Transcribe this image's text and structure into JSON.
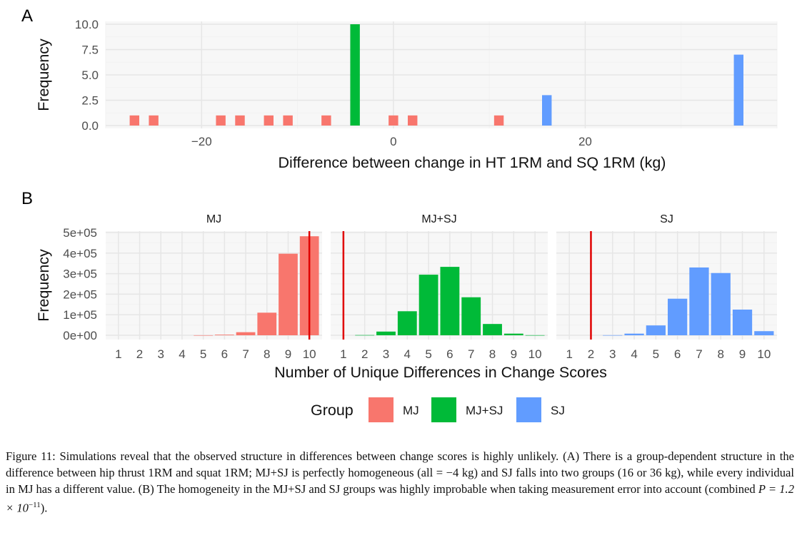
{
  "panel_a_label": "A",
  "panel_b_label": "B",
  "chart_data": [
    {
      "type": "bar",
      "panel": "A",
      "xlabel": "Difference between change in HT 1RM and SQ 1RM (kg)",
      "ylabel": "Frequency",
      "xlim": [
        -30,
        40
      ],
      "ylim": [
        0,
        10
      ],
      "xticks": [
        -20,
        0,
        20
      ],
      "xtick_labels": [
        "−20",
        "0",
        "20"
      ],
      "yticks": [
        0,
        2.5,
        5,
        7.5,
        10
      ],
      "ytick_labels": [
        "0.0",
        "2.5",
        "5.0",
        "7.5",
        "10.0"
      ],
      "grid": true,
      "series": [
        {
          "name": "MJ",
          "color": "#F8766D",
          "x": [
            -27,
            -25,
            -18,
            -16,
            -13,
            -11,
            -7,
            0,
            2,
            11
          ],
          "values": [
            1,
            1,
            1,
            1,
            1,
            1,
            1,
            1,
            1,
            1
          ]
        },
        {
          "name": "MJ+SJ",
          "color": "#00BA38",
          "x": [
            -4
          ],
          "values": [
            10
          ]
        },
        {
          "name": "SJ",
          "color": "#619CFF",
          "x": [
            16,
            36
          ],
          "values": [
            3,
            7
          ]
        }
      ]
    },
    {
      "type": "bar",
      "panel": "B",
      "xlabel": "Number of Unique Differences in Change Scores",
      "ylabel": "Frequency",
      "categories": [
        "1",
        "2",
        "3",
        "4",
        "5",
        "6",
        "7",
        "8",
        "9",
        "10"
      ],
      "ylim": [
        0,
        500000
      ],
      "yticks": [
        0,
        100000,
        200000,
        300000,
        400000,
        500000
      ],
      "ytick_labels": [
        "0e+00",
        "1e+05",
        "2e+05",
        "3e+05",
        "4e+05",
        "5e+05"
      ],
      "grid": true,
      "facets": [
        {
          "name": "MJ",
          "color": "#F8766D",
          "observed": 10,
          "values": [
            0,
            0,
            0,
            0,
            300,
            3000,
            15000,
            110000,
            397000,
            482000
          ]
        },
        {
          "name": "MJ+SJ",
          "color": "#00BA38",
          "observed": 1,
          "values": [
            0,
            1000,
            18000,
            117000,
            295000,
            333000,
            185000,
            55000,
            8000,
            500
          ]
        },
        {
          "name": "SJ",
          "color": "#619CFF",
          "observed": 2,
          "values": [
            0,
            0,
            500,
            8000,
            48000,
            178000,
            330000,
            303000,
            125000,
            20000
          ]
        }
      ]
    }
  ],
  "legend": {
    "title": "Group",
    "placement": "bottom",
    "items": [
      {
        "label": "MJ",
        "color": "#F8766D"
      },
      {
        "label": "MJ+SJ",
        "color": "#00BA38"
      },
      {
        "label": "SJ",
        "color": "#619CFF"
      }
    ]
  },
  "caption": {
    "prefix": "Figure 11: Simulations reveal that the observed structure in differences between change scores is highly unlikely. (A) There is a group-dependent structure in the difference between hip thrust 1RM and squat 1RM; MJ+SJ is perfectly homogeneous (all = −4 kg) and SJ falls into two groups (16 or 36 kg), while every individual in MJ has a different value. (B) The homogeneity in the MJ+SJ and SJ groups was highly improbable when taking measurement error into account (combined ",
    "math_base": "P = 1.2 × 10",
    "math_exp": "−11",
    "suffix": ")."
  }
}
